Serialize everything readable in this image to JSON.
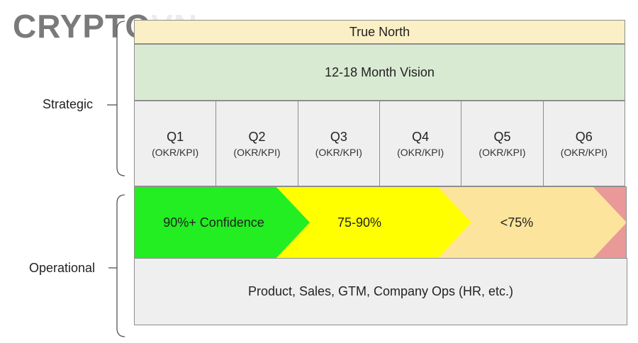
{
  "watermark": {
    "text_main": "CRYPTO",
    "text_faded": "VN"
  },
  "side_labels": {
    "strategic": "Strategic",
    "operational": "Operational"
  },
  "true_north": "True North",
  "vision": "12-18 Month Vision",
  "quarters": [
    {
      "label": "Q1",
      "sub": "(OKR/KPI)"
    },
    {
      "label": "Q2",
      "sub": "(OKR/KPI)"
    },
    {
      "label": "Q3",
      "sub": "(OKR/KPI)"
    },
    {
      "label": "Q4",
      "sub": "(OKR/KPI)"
    },
    {
      "label": "Q5",
      "sub": "(OKR/KPI)"
    },
    {
      "label": "Q6",
      "sub": "(OKR/KPI)"
    }
  ],
  "confidence": [
    {
      "label": "90%+ Confidence",
      "color": "#22ee22"
    },
    {
      "label": "75-90%",
      "color": "#ffff00"
    },
    {
      "label": "<75%",
      "color": "#fde49c"
    },
    {
      "label": "",
      "color": "#ea9999"
    }
  ],
  "operations": "Product, Sales, GTM, Company Ops (HR, etc.)"
}
